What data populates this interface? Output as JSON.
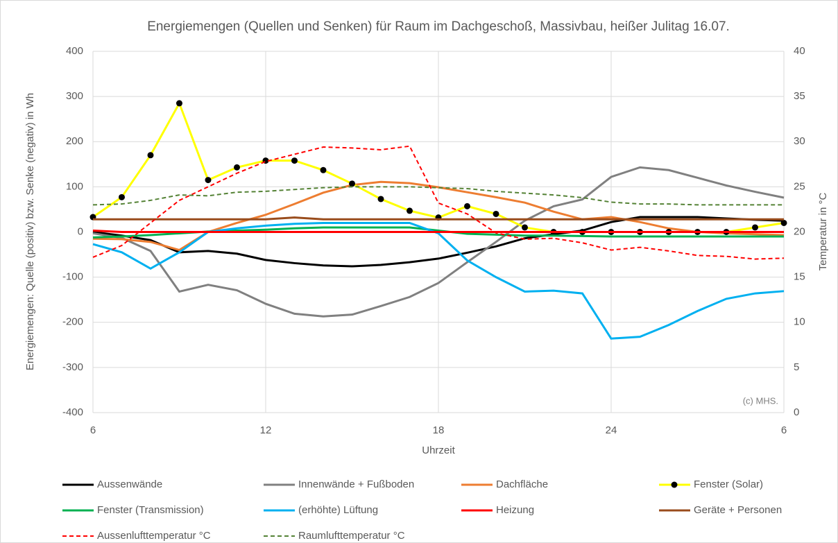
{
  "chart_data": {
    "type": "line",
    "title": "Energiemengen (Quellen und Senken) für Raum im Dachgeschoß, Massivbau, heißer Julitag 16.07.",
    "x_label": "Uhrzeit",
    "y_label": "Energiemengen: Quelle (positiv) bzw. Senke (negativ) in Wh",
    "y2_label": "Temperatur in °C",
    "annotation": "(c) MHS.",
    "x": [
      6,
      7,
      8,
      9,
      10,
      11,
      12,
      13,
      14,
      15,
      16,
      17,
      18,
      19,
      20,
      21,
      22,
      23,
      24,
      25,
      26,
      27,
      28,
      29,
      30
    ],
    "xlim": [
      6,
      30
    ],
    "xticks": [
      6,
      12,
      18,
      24,
      {
        "value": 30,
        "label": "6"
      }
    ],
    "ylim": [
      -400,
      400
    ],
    "yticks": [
      -400,
      -300,
      -200,
      -100,
      0,
      100,
      200,
      300,
      400
    ],
    "y2lim": [
      0,
      40
    ],
    "y2ticks": [
      0,
      5,
      10,
      15,
      20,
      25,
      30,
      35,
      40
    ],
    "grid": true,
    "legend": "bottom",
    "series": [
      {
        "name": "Aussenwände",
        "color": "#000000",
        "values": [
          0,
          -8,
          -18,
          -45,
          -42,
          -48,
          -62,
          -69,
          -74,
          -76,
          -73,
          -67,
          -59,
          -46,
          -32,
          -14,
          -5,
          3,
          22,
          33,
          33,
          33,
          30,
          27,
          25
        ]
      },
      {
        "name": "Innenwände + Fußboden",
        "color": "#808080",
        "values": [
          -3,
          -13,
          -42,
          -132,
          -117,
          -129,
          -159,
          -181,
          -187,
          -183,
          -164,
          -144,
          -113,
          -67,
          -22,
          25,
          57,
          72,
          122,
          143,
          137,
          120,
          103,
          89,
          76
        ]
      },
      {
        "name": "Dachfläche",
        "color": "#ed7d31",
        "values": [
          -15,
          -16,
          -22,
          -40,
          0,
          20,
          38,
          62,
          87,
          104,
          111,
          108,
          99,
          88,
          77,
          65,
          45,
          28,
          33,
          22,
          8,
          0,
          -3,
          -5,
          -7
        ]
      },
      {
        "name": "Fenster (Solar)",
        "color": "#ffff00",
        "marker": "circle",
        "values": [
          33,
          77,
          170,
          285,
          115,
          143,
          158,
          158,
          137,
          107,
          73,
          47,
          32,
          57,
          40,
          10,
          0,
          0,
          0,
          0,
          0,
          0,
          0,
          10,
          20
        ]
      },
      {
        "name": "Fenster (Transmission)",
        "color": "#00b050",
        "values": [
          -12,
          -10,
          -7,
          -3,
          1,
          3,
          5,
          8,
          10,
          10,
          10,
          10,
          3,
          -4,
          -6,
          -8,
          -8,
          -9,
          -10,
          -10,
          -10,
          -10,
          -10,
          -10,
          -10
        ]
      },
      {
        "name": "(erhöhte) Lüftung",
        "color": "#00b0f0",
        "values": [
          -27,
          -45,
          -81,
          -45,
          0,
          8,
          14,
          18,
          20,
          20,
          20,
          20,
          -3,
          -63,
          -100,
          -132,
          -130,
          -136,
          -236,
          -232,
          -206,
          -175,
          -148,
          -136,
          -131
        ]
      },
      {
        "name": "Heizung",
        "color": "#ff0000",
        "values": [
          3,
          0,
          0,
          0,
          0,
          0,
          0,
          0,
          0,
          0,
          0,
          0,
          0,
          0,
          0,
          0,
          0,
          0,
          0,
          0,
          0,
          0,
          0,
          0,
          0
        ]
      },
      {
        "name": "Geräte + Personen",
        "color": "#994c1c",
        "values": [
          28,
          28,
          28,
          28,
          28,
          28,
          28,
          32,
          28,
          28,
          28,
          28,
          28,
          28,
          28,
          28,
          28,
          28,
          28,
          28,
          28,
          28,
          28,
          28,
          28
        ]
      },
      {
        "name": "Aussenlufttemperatur °C",
        "color": "#ff0000",
        "dash": true,
        "axis": "y2",
        "values": [
          17.2,
          18.5,
          21,
          23.5,
          25,
          26.5,
          27.8,
          28.6,
          29.4,
          29.3,
          29.1,
          29.5,
          23.2,
          22,
          19.9,
          19.2,
          19.3,
          18.8,
          18,
          18.3,
          17.9,
          17.4,
          17.3,
          17,
          17.1
        ]
      },
      {
        "name": "Raumlufttemperatur °C",
        "color": "#548235",
        "dash": true,
        "axis": "y2",
        "values": [
          23,
          23.1,
          23.5,
          24.1,
          24,
          24.4,
          24.5,
          24.7,
          24.9,
          25,
          25,
          25,
          24.9,
          24.8,
          24.5,
          24.3,
          24.1,
          23.8,
          23.3,
          23.1,
          23.1,
          23,
          23,
          23,
          23
        ]
      }
    ]
  }
}
